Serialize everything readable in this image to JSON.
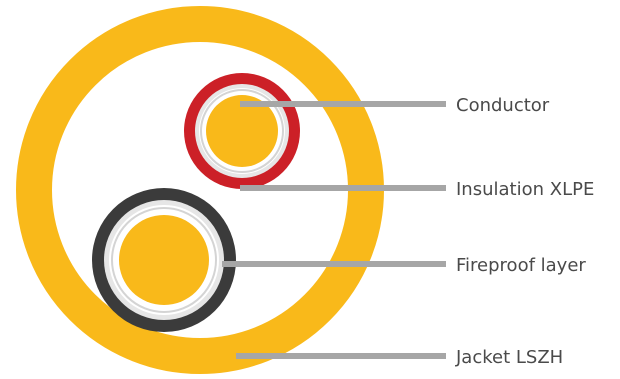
{
  "diagram": {
    "labels": {
      "conductor": "Conductor",
      "insulation": "Insulation XLPE",
      "fireproof": "Fireproof layer",
      "jacket": "Jacket LSZH"
    },
    "colors": {
      "jacket": "#f9b91a",
      "conductor": "#f9b91a",
      "insulation_red": "#cc2027",
      "insulation_black": "#3b3b3b",
      "fireproof_layer": "#e6e6e6",
      "callout_line": "#a6a6a6",
      "label_text": "#4a4a4a",
      "background": "#ffffff"
    }
  }
}
